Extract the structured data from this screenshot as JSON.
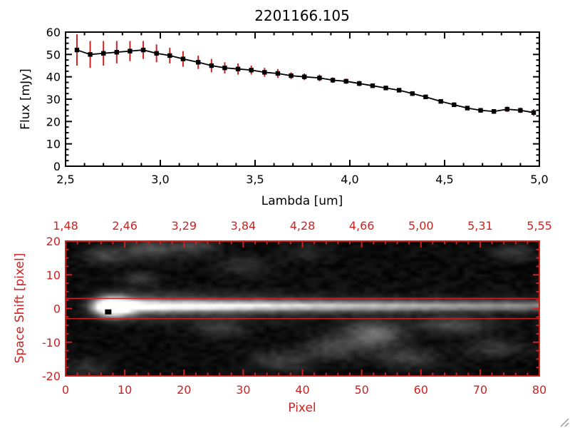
{
  "colors": {
    "background": "#ffffff",
    "red": "#cc2222",
    "black": "#000000"
  },
  "chart_data": [
    {
      "type": "line",
      "title": "2201166.105",
      "xlabel": "Lambda [um]",
      "ylabel": "Flux [mJy]",
      "xlim": [
        2.5,
        5.0
      ],
      "ylim": [
        0,
        60
      ],
      "xtick_values": [
        2.5,
        3.0,
        3.5,
        4.0,
        4.5,
        5.0
      ],
      "xtick_labels": [
        "2,5",
        "3,0",
        "3,5",
        "4,0",
        "4,5",
        "5,0"
      ],
      "ytick_values": [
        0,
        10,
        20,
        30,
        40,
        50,
        60
      ],
      "ytick_labels": [
        "0",
        "10",
        "20",
        "30",
        "40",
        "50",
        "60"
      ],
      "marker": "filled-square",
      "line_color": "#000000",
      "error_bar_color": "#cc2222",
      "x": [
        2.56,
        2.63,
        2.7,
        2.77,
        2.84,
        2.91,
        2.98,
        3.05,
        3.12,
        3.2,
        3.27,
        3.34,
        3.41,
        3.48,
        3.55,
        3.62,
        3.69,
        3.76,
        3.84,
        3.91,
        3.98,
        4.05,
        4.12,
        4.19,
        4.26,
        4.33,
        4.4,
        4.48,
        4.55,
        4.62,
        4.69,
        4.76,
        4.83,
        4.9,
        4.97
      ],
      "y": [
        52,
        50,
        50.5,
        51,
        51.5,
        52,
        50.5,
        49.5,
        48,
        46.5,
        45,
        44,
        43.5,
        43,
        42,
        41.5,
        40.5,
        40,
        39.5,
        38.5,
        38,
        37,
        36,
        35,
        34,
        32.5,
        31,
        29,
        27.5,
        26,
        25,
        24.5,
        25.5,
        25,
        24
      ],
      "yerr": [
        7,
        6,
        5.5,
        5,
        4.5,
        4,
        4,
        3.5,
        3.5,
        3,
        3,
        2.5,
        2.5,
        2,
        2,
        2,
        1.5,
        1.5,
        1.5,
        1.2,
        1.2,
        1.2,
        1,
        1,
        1,
        1,
        1,
        1,
        1,
        1,
        1,
        1,
        1.2,
        1.2,
        1.5
      ]
    },
    {
      "type": "heatmap",
      "xlabel": "Pixel",
      "ylabel": "Space Shift [pixel]",
      "xlim": [
        0,
        80
      ],
      "ylim": [
        -20,
        20
      ],
      "xtick_values": [
        0,
        10,
        20,
        30,
        40,
        50,
        60,
        70,
        80
      ],
      "xtick_labels": [
        "0",
        "10",
        "20",
        "30",
        "40",
        "50",
        "60",
        "70",
        "80"
      ],
      "ytick_values": [
        -20,
        -10,
        0,
        10,
        20
      ],
      "ytick_labels": [
        "-20",
        "-10",
        "0",
        "10",
        "20"
      ],
      "top_axis_labels": [
        {
          "x": 0,
          "label": "1,48"
        },
        {
          "x": 10,
          "label": "2,46"
        },
        {
          "x": 20,
          "label": "3,29"
        },
        {
          "x": 30,
          "label": "3,84"
        },
        {
          "x": 40,
          "label": "4,28"
        },
        {
          "x": 50,
          "label": "4,66"
        },
        {
          "x": 60,
          "label": "5,00"
        },
        {
          "x": 70,
          "label": "5,31"
        },
        {
          "x": 80,
          "label": "5,55"
        }
      ],
      "hlines": [
        3,
        -3
      ],
      "marker": {
        "x": 7.2,
        "y": -1
      },
      "heatmap": {
        "noise": 0.09,
        "streak": {
          "x0": 8,
          "y0": 0.8,
          "amp": 0.95,
          "decay": 100,
          "sigma": 1.05,
          "rise_sigma": 2.0,
          "halo_amp": 0.4,
          "halo_sigma": 2.8,
          "halo_decay": 35
        },
        "core": {
          "x": 7.5,
          "y": 0.5,
          "sx": 2.2,
          "sy": 1.9,
          "amp": 1.25
        },
        "blobs": [
          [
            6,
            16,
            2.5,
            1.8,
            0.22
          ],
          [
            14,
            18,
            3.5,
            2.0,
            0.28
          ],
          [
            22,
            19,
            2.5,
            1.8,
            0.22
          ],
          [
            12,
            9,
            2.0,
            1.5,
            0.18
          ],
          [
            30,
            13,
            3.0,
            2.0,
            0.15
          ],
          [
            26,
            -6,
            3.0,
            2.0,
            0.18
          ],
          [
            36,
            -16,
            3.5,
            2.2,
            0.2
          ],
          [
            45,
            -12,
            3.5,
            2.5,
            0.22
          ],
          [
            52,
            -8,
            3.5,
            2.8,
            0.4
          ],
          [
            58,
            -15,
            3.5,
            2.0,
            0.22
          ],
          [
            66,
            -5,
            4.5,
            1.8,
            0.25
          ],
          [
            73,
            -12,
            3.5,
            2.0,
            0.18
          ],
          [
            76,
            17,
            2.5,
            1.8,
            0.18
          ],
          [
            41,
            17,
            2.5,
            1.8,
            0.13
          ],
          [
            3,
            -18,
            2.5,
            1.8,
            0.15
          ]
        ]
      }
    }
  ]
}
